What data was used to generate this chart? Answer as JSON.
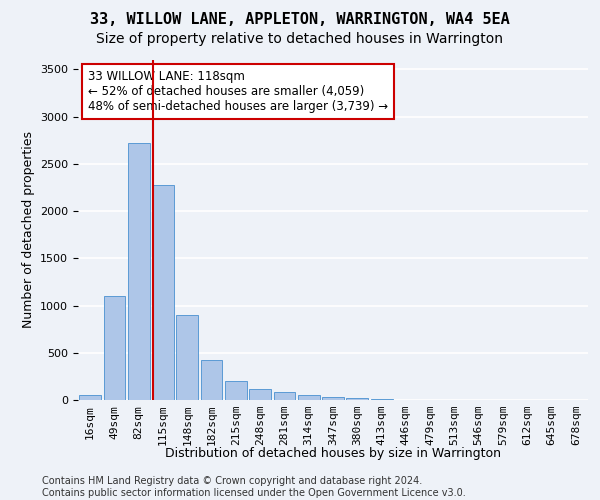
{
  "title1": "33, WILLOW LANE, APPLETON, WARRINGTON, WA4 5EA",
  "title2": "Size of property relative to detached houses in Warrington",
  "xlabel": "Distribution of detached houses by size in Warrington",
  "ylabel": "Number of detached properties",
  "bin_labels": [
    "16sqm",
    "49sqm",
    "82sqm",
    "115sqm",
    "148sqm",
    "182sqm",
    "215sqm",
    "248sqm",
    "281sqm",
    "314sqm",
    "347sqm",
    "380sqm",
    "413sqm",
    "446sqm",
    "479sqm",
    "513sqm",
    "546sqm",
    "579sqm",
    "612sqm",
    "645sqm",
    "678sqm"
  ],
  "bar_heights": [
    50,
    1100,
    2720,
    2280,
    900,
    420,
    200,
    115,
    80,
    55,
    35,
    25,
    15,
    5,
    2,
    1,
    0,
    0,
    0,
    0,
    0
  ],
  "bar_color": "#aec6e8",
  "bar_edge_color": "#5b9bd5",
  "vline_pos": 2.575,
  "vline_color": "#cc0000",
  "annotation_text": "33 WILLOW LANE: 118sqm\n← 52% of detached houses are smaller (4,059)\n48% of semi-detached houses are larger (3,739) →",
  "annotation_box_color": "#ffffff",
  "annotation_box_edge": "#cc0000",
  "ylim": [
    0,
    3600
  ],
  "yticks": [
    0,
    500,
    1000,
    1500,
    2000,
    2500,
    3000,
    3500
  ],
  "footer": "Contains HM Land Registry data © Crown copyright and database right 2024.\nContains public sector information licensed under the Open Government Licence v3.0.",
  "bg_color": "#eef2f8",
  "plot_bg_color": "#eef2f8",
  "grid_color": "#ffffff",
  "title1_fontsize": 11,
  "title2_fontsize": 10,
  "xlabel_fontsize": 9,
  "ylabel_fontsize": 9,
  "tick_fontsize": 8,
  "annotation_fontsize": 8.5,
  "footer_fontsize": 7
}
